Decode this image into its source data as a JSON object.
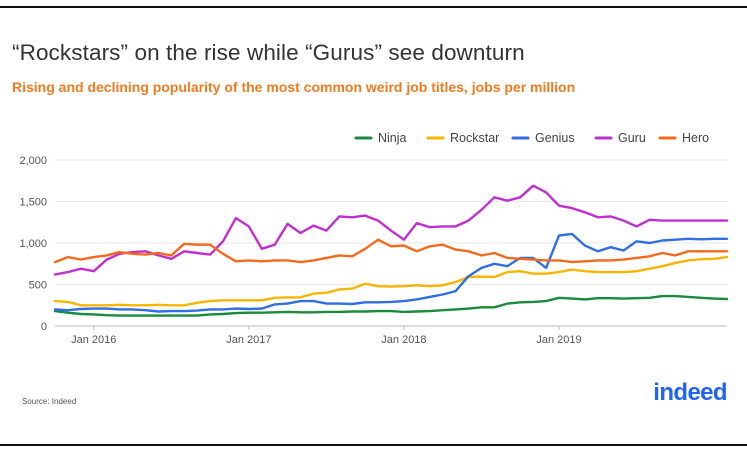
{
  "header": {
    "title": "“Rockstars” on the rise while “Gurus” see downturn",
    "subtitle": "Rising and declining popularity of the most common weird job titles, jobs per million"
  },
  "footer": {
    "source": "Source: Indeed",
    "logo": "indeed"
  },
  "colors": {
    "Ninja": "#1a8a3c",
    "Rockstar": "#f7b500",
    "Genius": "#2f6fe0",
    "Guru": "#c02fd0",
    "Hero": "#f26b1d"
  },
  "chart_data": {
    "type": "line",
    "title": "“Rockstars” on the rise while “Gurus” see downturn",
    "subtitle": "Rising and declining popularity of the most common weird job titles, jobs per million",
    "xlabel": "",
    "ylabel": "",
    "x_start": "Oct 2015",
    "x_end": "Jan 2020",
    "x_ticks": [
      "Jan 2016",
      "Jan 2017",
      "Jan 2018",
      "Jan 2019"
    ],
    "y_ticks": [
      "0",
      "500",
      "1,000",
      "1,500",
      "2,000"
    ],
    "ylim": [
      0,
      2000
    ],
    "grid": true,
    "legend": "top-right",
    "series": [
      {
        "name": "Ninja",
        "values": [
          180,
          160,
          145,
          140,
          130,
          125,
          125,
          125,
          125,
          125,
          125,
          125,
          140,
          145,
          155,
          160,
          160,
          165,
          170,
          165,
          165,
          170,
          170,
          175,
          175,
          180,
          180,
          170,
          175,
          180,
          190,
          200,
          210,
          225,
          225,
          270,
          285,
          290,
          300,
          340,
          330,
          320,
          335,
          335,
          330,
          335,
          340,
          360,
          360,
          350,
          340,
          330,
          325
        ]
      },
      {
        "name": "Rockstar",
        "values": [
          300,
          290,
          250,
          250,
          250,
          255,
          250,
          250,
          255,
          250,
          250,
          280,
          300,
          310,
          310,
          310,
          310,
          340,
          345,
          345,
          390,
          400,
          440,
          450,
          510,
          480,
          475,
          480,
          490,
          480,
          490,
          530,
          590,
          595,
          590,
          650,
          660,
          630,
          630,
          650,
          680,
          660,
          650,
          650,
          650,
          660,
          690,
          720,
          760,
          790,
          805,
          810,
          830
        ]
      },
      {
        "name": "Genius",
        "values": [
          200,
          190,
          205,
          210,
          210,
          200,
          200,
          190,
          175,
          180,
          180,
          185,
          200,
          200,
          210,
          205,
          210,
          260,
          270,
          300,
          300,
          270,
          270,
          265,
          285,
          285,
          290,
          300,
          320,
          350,
          380,
          420,
          600,
          700,
          750,
          720,
          820,
          820,
          700,
          1090,
          1110,
          970,
          900,
          950,
          910,
          1020,
          1000,
          1030,
          1040,
          1050,
          1045,
          1050,
          1050
        ]
      },
      {
        "name": "Guru",
        "values": [
          620,
          650,
          690,
          660,
          800,
          870,
          890,
          900,
          850,
          810,
          900,
          880,
          860,
          1020,
          1300,
          1200,
          930,
          980,
          1230,
          1120,
          1210,
          1150,
          1320,
          1310,
          1330,
          1270,
          1150,
          1040,
          1240,
          1190,
          1200,
          1200,
          1270,
          1400,
          1550,
          1510,
          1550,
          1690,
          1610,
          1450,
          1420,
          1370,
          1310,
          1320,
          1270,
          1200,
          1280,
          1270,
          1270,
          1270,
          1270,
          1270,
          1270
        ]
      },
      {
        "name": "Hero",
        "values": [
          770,
          830,
          800,
          830,
          850,
          890,
          870,
          860,
          880,
          850,
          990,
          980,
          980,
          870,
          780,
          790,
          780,
          790,
          790,
          770,
          790,
          820,
          850,
          840,
          930,
          1040,
          960,
          970,
          900,
          960,
          980,
          920,
          900,
          850,
          880,
          820,
          810,
          800,
          790,
          790,
          770,
          780,
          790,
          790,
          800,
          820,
          840,
          880,
          850,
          900,
          900,
          900,
          900
        ]
      }
    ]
  }
}
